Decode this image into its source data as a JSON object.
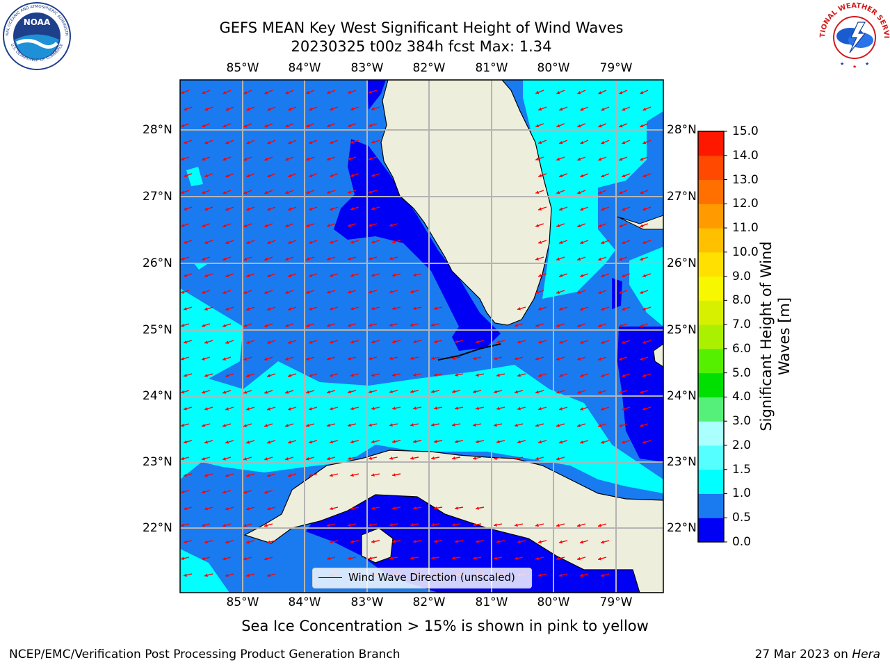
{
  "title": {
    "line1": "GEFS MEAN Key West Significant Height of Wind Waves",
    "line2": "20230325 t00z 384h fcst   Max: 1.34"
  },
  "logos": {
    "left": {
      "name": "noaa-logo",
      "text": "NOAA",
      "ring": "NATIONAL OCEANIC AND ATMOSPHERIC ADMINISTRATION",
      "bottom": "U.S. DEPARTMENT OF COMMERCE"
    },
    "right": {
      "name": "nws-logo",
      "ring": "NATIONAL WEATHER SERVICE"
    }
  },
  "map": {
    "lon_ticks": [
      "85°W",
      "84°W",
      "83°W",
      "82°W",
      "81°W",
      "80°W",
      "79°W"
    ],
    "lat_ticks": [
      "28°N",
      "27°N",
      "26°N",
      "25°N",
      "24°N",
      "23°N",
      "22°N"
    ],
    "extent": {
      "lon_min": -86.0,
      "lon_max": -78.3,
      "lat_min": 21.1,
      "lat_max": 28.8
    },
    "ocean_colors": {
      "very_calm": "#0000f5",
      "calm": "#1a7bf0",
      "moderate": "#00ffff",
      "land": "#eeeedc",
      "arrows": "#ff0000",
      "grid": "#b4b4b4"
    },
    "legend_label": "Wind Wave Direction (unscaled)"
  },
  "colorbar": {
    "label": "Significant Height of Wind Waves [m]",
    "ticks": [
      "0.0",
      "0.5",
      "1.0",
      "1.5",
      "2.0",
      "3.0",
      "4.0",
      "5.0",
      "6.0",
      "7.0",
      "8.0",
      "9.0",
      "10.0",
      "11.0",
      "12.0",
      "13.0",
      "14.0",
      "15.0"
    ],
    "colors": [
      "#0000f5",
      "#1a7bf0",
      "#00ffff",
      "#55ffff",
      "#aaffff",
      "#55f07a",
      "#00e000",
      "#55f000",
      "#aaf000",
      "#d7f000",
      "#f7f700",
      "#ffe000",
      "#ffc000",
      "#ff9a00",
      "#ff7000",
      "#ff4800",
      "#ff1800"
    ]
  },
  "subtitle": "Sea Ice Concentration > 15% is shown in pink to yellow",
  "footer": {
    "left": "NCEP/EMC/Verification Post Processing Product Generation Branch",
    "right_date": "27 Mar 2023 on",
    "right_host": "Hera"
  }
}
